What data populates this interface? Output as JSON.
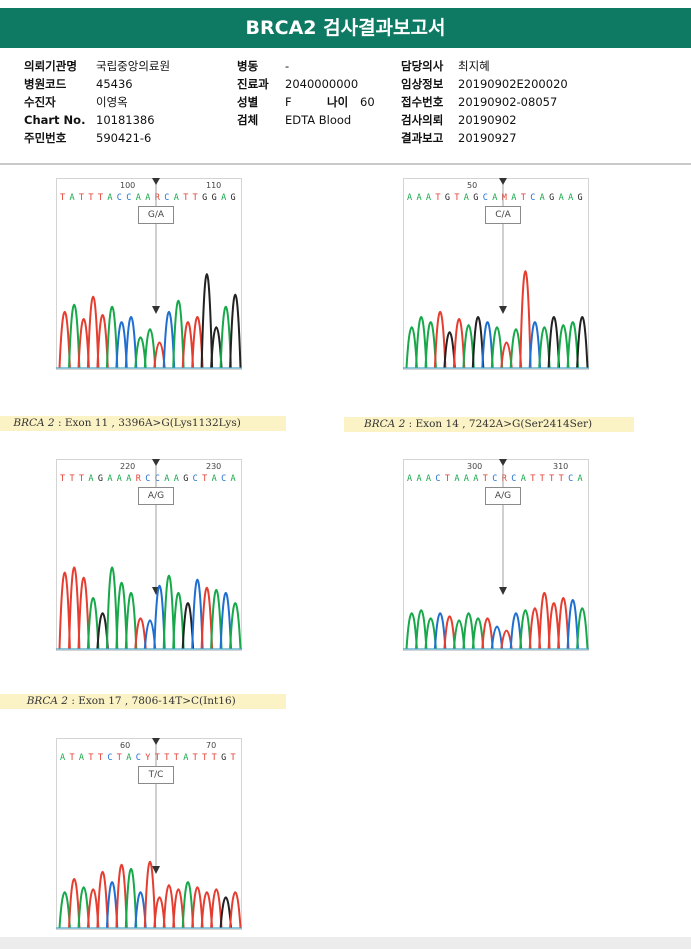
{
  "report": {
    "title": "BRCA2 검사결과보고서",
    "fields_left": [
      {
        "label": "의뢰기관명",
        "value": "국립중앙의료원"
      },
      {
        "label": "병원코드",
        "value": "45436"
      },
      {
        "label": "수진자",
        "value": "이영옥"
      },
      {
        "label": "Chart No.",
        "value": "10181386"
      },
      {
        "label": "주민번호",
        "value": "590421-6"
      }
    ],
    "fields_mid": [
      {
        "label": "병동",
        "value": "-"
      },
      {
        "label": "진료과",
        "value": "2040000000"
      },
      {
        "label": "성별",
        "value": "F"
      },
      {
        "label": "검체",
        "value": "EDTA Blood"
      }
    ],
    "age": {
      "label": "나이",
      "value": "60"
    },
    "fields_right": [
      {
        "label": "담당의사",
        "value": "최지혜"
      },
      {
        "label": "임상정보",
        "value": "20190902E200020"
      },
      {
        "label": "접수번호",
        "value": "20190902-08057"
      },
      {
        "label": "검사의뢰",
        "value": "20190902"
      },
      {
        "label": "결과보고",
        "value": "20190927"
      }
    ]
  },
  "base_colors": {
    "A": "#17a84a",
    "T": "#e53e30",
    "C": "#1f6fd1",
    "G": "#222222",
    "R": "#e53e30",
    "M": "#e53e30",
    "Y": "#e53e30"
  },
  "panels": [
    {
      "id": "p1",
      "sequence": "TATTTACCAARCATTGGAG",
      "tick1": "100",
      "tick2": "110",
      "call": "G/A",
      "caption": ""
    },
    {
      "id": "p2",
      "sequence": "AAATGTAGCAMATCAGAAG",
      "tick1": "50",
      "tick2": "",
      "call": "C/A",
      "caption": ""
    },
    {
      "id": "p3",
      "sequence": "TTTAGAAARCCAAGCTACA",
      "tick1": "220",
      "tick2": "230",
      "call": "A/G",
      "caption_gene": "BRCA 2",
      "caption_rest": ": Exon 11 , 3396A>G(Lys1132Lys)"
    },
    {
      "id": "p4",
      "sequence": "AAACTAAATCRCATTTTCA",
      "tick1": "300",
      "tick2": "310",
      "call": "A/G",
      "caption_gene": "BRCA 2",
      "caption_rest": ": Exon 14 , 7242A>G(Ser2414Ser)"
    },
    {
      "id": "p5",
      "sequence": "ATATTCTACYTTTATTTGT",
      "tick1": "60",
      "tick2": "70",
      "call": "T/C",
      "caption_gene": "BRCA 2",
      "caption_rest": ": Exon 17 , 7806-14T>C(Int16)"
    }
  ]
}
